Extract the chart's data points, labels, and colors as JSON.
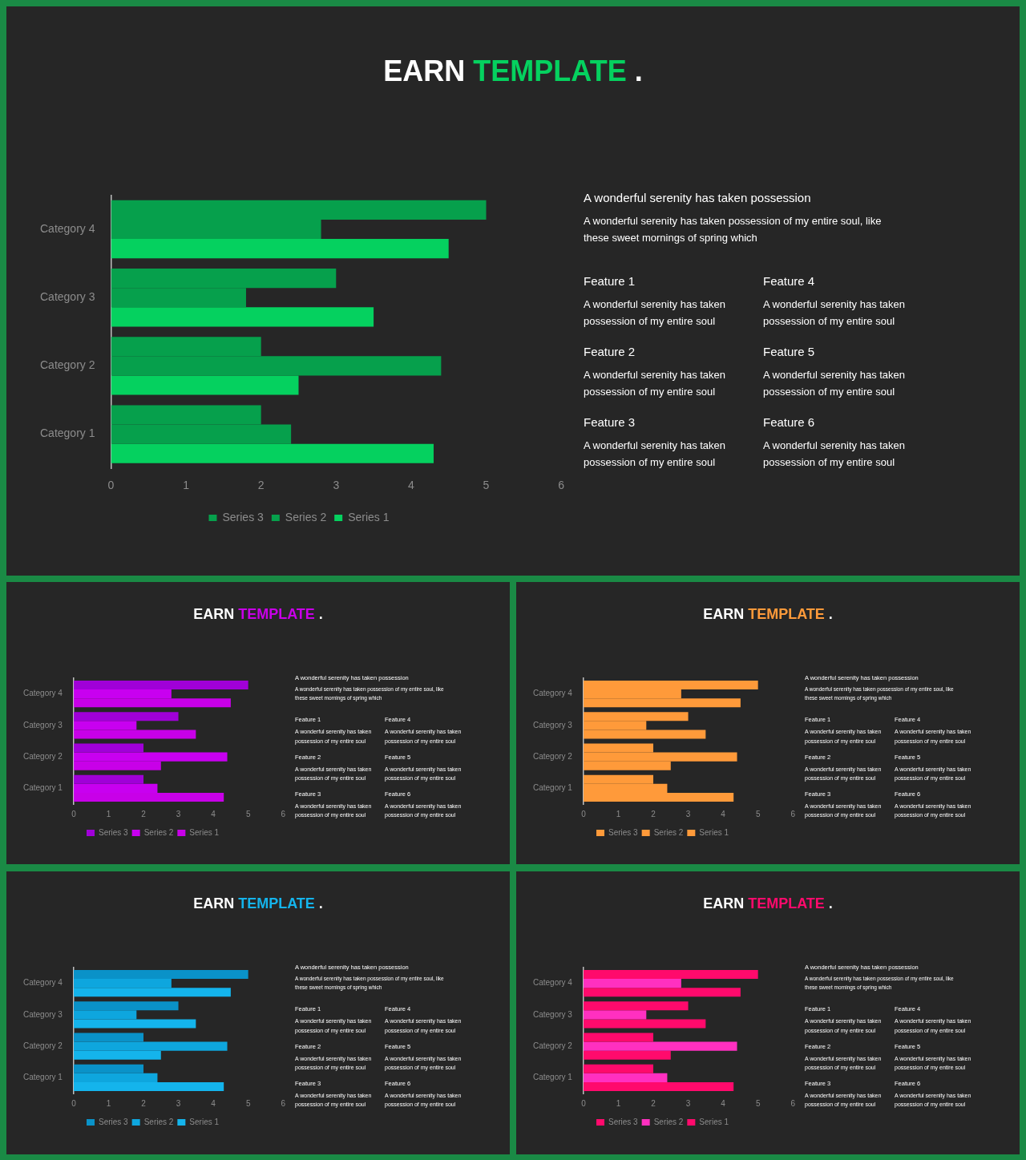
{
  "chart_data": [
    {
      "type": "bar",
      "orientation": "horizontal",
      "title": "EARN TEMPLATE .",
      "categories": [
        "Category 4",
        "Category 3",
        "Category 2",
        "Category 1"
      ],
      "series": [
        {
          "name": "Series 3",
          "color": "#06a04c",
          "values": [
            5,
            3,
            2,
            2
          ]
        },
        {
          "name": "Series 2",
          "color": "#06a04c",
          "values": [
            2.8,
            1.8,
            4.4,
            2.4
          ]
        },
        {
          "name": "Series 1",
          "color": "#05d15f",
          "values": [
            4.5,
            3.5,
            2.5,
            4.3
          ]
        }
      ],
      "xlim": [
        0,
        6
      ],
      "xticks": [
        0,
        1,
        2,
        3,
        4,
        5,
        6
      ],
      "legend": "bottom",
      "annotations": [
        "A wonderful serenity has taken possession",
        "A wonderful serenity has taken possession of my entire soul, like these sweet mornings of spring which",
        "Feature 1",
        "A wonderful serenity has taken possession of my entire soul",
        "Feature 2",
        "A wonderful serenity has taken possession of my entire soul",
        "Feature 3",
        "A wonderful serenity has taken possession of my entire soul",
        "Feature 4",
        "A wonderful serenity has taken possession of my entire soul",
        "Feature 5",
        "A wonderful serenity has taken possession of my entire soul",
        "Feature 6",
        "A wonderful serenity has taken possession of my entire soul"
      ]
    },
    {
      "type": "bar",
      "orientation": "horizontal",
      "title": "EARN TEMPLATE .",
      "categories": [
        "Category 4",
        "Category 3",
        "Category 2",
        "Category 1"
      ],
      "series": [
        {
          "name": "Series 3",
          "color": "#a000d8",
          "values": [
            5,
            3,
            2,
            2
          ]
        },
        {
          "name": "Series 2",
          "color": "#c800f0",
          "values": [
            2.8,
            1.8,
            4.4,
            2.4
          ]
        },
        {
          "name": "Series 1",
          "color": "#c800e8",
          "values": [
            4.5,
            3.5,
            2.5,
            4.3
          ]
        }
      ],
      "xlim": [
        0,
        6
      ],
      "xticks": [
        0,
        1,
        2,
        3,
        4,
        5,
        6
      ],
      "legend": "bottom",
      "annotations": [
        "A wonderful serenity has taken possession",
        "A wonderful serenity has taken possession of my entire soul, like these sweet mornings of spring which",
        "Feature 1",
        "A wonderful serenity has taken possession of my entire soul",
        "Feature 2",
        "A wonderful serenity has taken possession of my entire soul",
        "Feature 3",
        "A wonderful serenity has taken possession of my entire soul",
        "Feature 4",
        "A wonderful serenity has taken possession of my entire soul",
        "Feature 5",
        "A wonderful serenity has taken possession of my entire soul",
        "Feature 6",
        "A wonderful serenity has taken possession of my entire soul"
      ]
    },
    {
      "type": "bar",
      "orientation": "horizontal",
      "title": "EARN TEMPLATE .",
      "categories": [
        "Category 4",
        "Category 3",
        "Category 2",
        "Category 1"
      ],
      "series": [
        {
          "name": "Series 3",
          "color": "#ff9a3a",
          "values": [
            5,
            3,
            2,
            2
          ]
        },
        {
          "name": "Series 2",
          "color": "#ff9a3a",
          "values": [
            2.8,
            1.8,
            4.4,
            2.4
          ]
        },
        {
          "name": "Series 1",
          "color": "#ff9a3a",
          "values": [
            4.5,
            3.5,
            2.5,
            4.3
          ]
        }
      ],
      "xlim": [
        0,
        6
      ],
      "xticks": [
        0,
        1,
        2,
        3,
        4,
        5,
        6
      ],
      "legend": "bottom",
      "annotations": [
        "A wonderful serenity has taken possession",
        "A wonderful serenity has taken possession of my entire soul, like these sweet mornings of spring which",
        "Feature 1",
        "A wonderful serenity has taken possession of my entire soul",
        "Feature 2",
        "A wonderful serenity has taken possession of my entire soul",
        "Feature 3",
        "A wonderful serenity has taken possession of my entire soul",
        "Feature 4",
        "A wonderful serenity has taken possession of my entire soul",
        "Feature 5",
        "A wonderful serenity has taken possession of my entire soul",
        "Feature 6",
        "A wonderful serenity has taken possession of my entire soul"
      ]
    },
    {
      "type": "bar",
      "orientation": "horizontal",
      "title": "EARN TEMPLATE .",
      "categories": [
        "Category 4",
        "Category 3",
        "Category 2",
        "Category 1"
      ],
      "series": [
        {
          "name": "Series 3",
          "color": "#0a92c8",
          "values": [
            5,
            3,
            2,
            2
          ]
        },
        {
          "name": "Series 2",
          "color": "#0ea6de",
          "values": [
            2.8,
            1.8,
            4.4,
            2.4
          ]
        },
        {
          "name": "Series 1",
          "color": "#14b4ec",
          "values": [
            4.5,
            3.5,
            2.5,
            4.3
          ]
        }
      ],
      "xlim": [
        0,
        6
      ],
      "xticks": [
        0,
        1,
        2,
        3,
        4,
        5,
        6
      ],
      "legend": "bottom",
      "annotations": [
        "A wonderful serenity has taken possession",
        "A wonderful serenity has taken possession of my entire soul, like these sweet mornings of spring which",
        "Feature 1",
        "A wonderful serenity has taken possession of my entire soul",
        "Feature 2",
        "A wonderful serenity has taken possession of my entire soul",
        "Feature 3",
        "A wonderful serenity has taken possession of my entire soul",
        "Feature 4",
        "A wonderful serenity has taken possession of my entire soul",
        "Feature 5",
        "A wonderful serenity has taken possession of my entire soul",
        "Feature 6",
        "A wonderful serenity has taken possession of my entire soul"
      ]
    },
    {
      "type": "bar",
      "orientation": "horizontal",
      "title": "EARN TEMPLATE .",
      "categories": [
        "Category 4",
        "Category 3",
        "Category 2",
        "Category 1"
      ],
      "series": [
        {
          "name": "Series 3",
          "color": "#ff0a6c",
          "values": [
            5,
            3,
            2,
            2
          ]
        },
        {
          "name": "Series 2",
          "color": "#ff30c0",
          "values": [
            2.8,
            1.8,
            4.4,
            2.4
          ]
        },
        {
          "name": "Series 1",
          "color": "#ff0a6c",
          "values": [
            4.5,
            3.5,
            2.5,
            4.3
          ]
        }
      ],
      "xlim": [
        0,
        6
      ],
      "xticks": [
        0,
        1,
        2,
        3,
        4,
        5,
        6
      ],
      "legend": "bottom",
      "annotations": [
        "A wonderful serenity has taken possession",
        "A wonderful serenity has taken possession of my entire soul, like these sweet mornings of spring which",
        "Feature 1",
        "A wonderful serenity has taken possession of my entire soul",
        "Feature 2",
        "A wonderful serenity has taken possession of my entire soul",
        "Feature 3",
        "A wonderful serenity has taken possession of my entire soul",
        "Feature 4",
        "A wonderful serenity has taken possession of my entire soul",
        "Feature 5",
        "A wonderful serenity has taken possession of my entire soul",
        "Feature 6",
        "A wonderful serenity has taken possession of my entire soul"
      ]
    }
  ]
}
